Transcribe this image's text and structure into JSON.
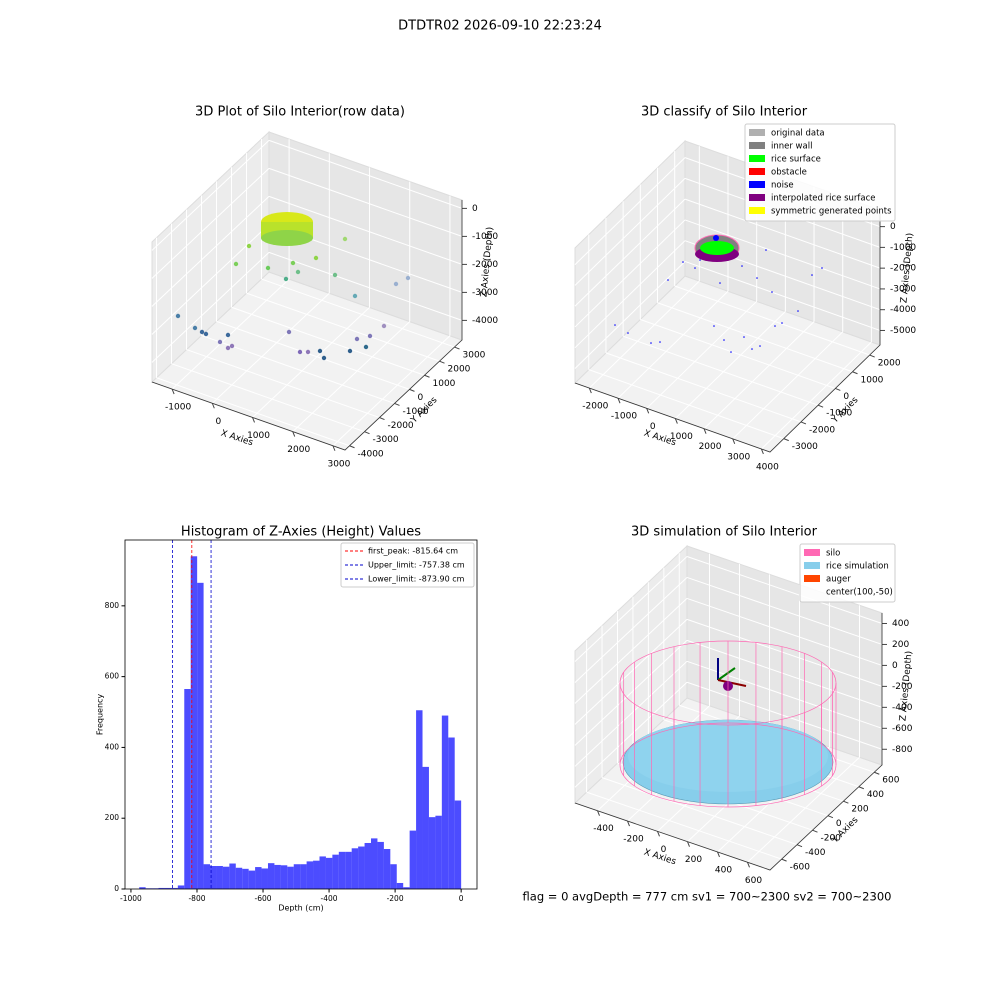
{
  "title": "DTDTR02 2026-09-10 22:23:24",
  "footer": "flag = 0     avgDepth = 777 cm  sv1 = 700~2300  sv2 = 700~2300",
  "chart_data": [
    {
      "type": "scatter3d",
      "title": "3D Plot of Silo Interior(row data)",
      "xlabel": "X Axies",
      "ylabel": "Y Axies",
      "zlabel": "Z Axies (Depth)",
      "xlim": [
        -1500,
        3300
      ],
      "ylim": [
        -4300,
        3500
      ],
      "zlim": [
        -4700,
        300
      ],
      "xticks": [
        -1000,
        0,
        1000,
        2000,
        3000
      ],
      "yticks": [
        -4000,
        -3000,
        -2000,
        -1000,
        0,
        1000,
        2000,
        3000
      ],
      "zticks": [
        -4000,
        -3000,
        -2000,
        -1000,
        0
      ],
      "grid": true
    },
    {
      "type": "scatter3d",
      "title": "3D classify of Silo Interior",
      "xlabel": "X Axies",
      "ylabel": "Y Axies",
      "zlabel": "Z Axies (Depth)",
      "xlim": [
        -2500,
        4300
      ],
      "ylim": [
        -3800,
        2600
      ],
      "zlim": [
        -5700,
        800
      ],
      "xticks": [
        -2000,
        -1000,
        0,
        1000,
        2000,
        3000,
        4000
      ],
      "yticks": [
        -3000,
        -2000,
        -1000,
        0,
        1000,
        2000
      ],
      "zticks": [
        -5000,
        -4000,
        -3000,
        -2000,
        -1000,
        0
      ],
      "grid": true,
      "legend_position": "upper right",
      "legend": [
        {
          "name": "original data",
          "color": "#b0b0b0"
        },
        {
          "name": "inner wall",
          "color": "#808080"
        },
        {
          "name": "rice surface",
          "color": "#00ff00"
        },
        {
          "name": "obstacle",
          "color": "#ff0000"
        },
        {
          "name": "noise",
          "color": "#0000ff"
        },
        {
          "name": "interpolated rice surface",
          "color": "#800080"
        },
        {
          "name": "symmetric generated points",
          "color": "#ffff00"
        }
      ]
    },
    {
      "type": "histogram",
      "title": "Histogram of Z-Axies (Height) Values",
      "xlabel": "Depth (cm)",
      "ylabel": "Frequency",
      "color": "#0000ff",
      "bins": [
        -975,
        -955.5,
        -936,
        -916.5,
        -897,
        -877.5,
        -858,
        -838.5,
        -819,
        -799.5,
        -780,
        -760.5,
        -741,
        -721.5,
        -702,
        -682.5,
        -663,
        -643.5,
        -624,
        -604.5,
        -585,
        -565.5,
        -546,
        -526.5,
        -507,
        -487.5,
        -468,
        -448.5,
        -429,
        -409.5,
        -390,
        -370.5,
        -351,
        -331.5,
        -312,
        -292.5,
        -273,
        -253.5,
        -234,
        -214.5,
        -195,
        -175.5,
        -156,
        -136.5,
        -117,
        -97.5,
        -78,
        -58.5,
        -39,
        -19.5,
        0
      ],
      "values": [
        5,
        2,
        2,
        3,
        3,
        3,
        10,
        565,
        940,
        865,
        70,
        65,
        65,
        63,
        72,
        60,
        57,
        52,
        62,
        58,
        73,
        68,
        67,
        63,
        70,
        70,
        78,
        80,
        92,
        88,
        97,
        105,
        105,
        115,
        120,
        130,
        143,
        133,
        113,
        70,
        17,
        5,
        165,
        505,
        345,
        203,
        207,
        490,
        428,
        250
      ],
      "xlim": [
        -1018,
        48
      ],
      "ylim": [
        0,
        986
      ],
      "xticks": [
        -1000,
        -800,
        -600,
        -400,
        -200,
        0
      ],
      "yticks": [
        0,
        200,
        400,
        600,
        800
      ],
      "legend_position": "upper right",
      "vlines": [
        {
          "label": "first_peak: -815.64 cm",
          "value": -815.64,
          "color": "#ff0000"
        },
        {
          "label": "Upper_limit: -757.38 cm",
          "value": -757.38,
          "color": "#0000cc"
        },
        {
          "label": "Lower_limit: -873.90 cm",
          "value": -873.9,
          "color": "#0000cc"
        }
      ]
    },
    {
      "type": "scatter3d",
      "title": "3D simulation of Silo Interior",
      "xlabel": "X Axies",
      "ylabel": "Y Axies",
      "zlabel": "Z Axies (Depth)",
      "xlim": [
        -550,
        750
      ],
      "ylim": [
        -750,
        700
      ],
      "zlim": [
        -950,
        500
      ],
      "xticks": [
        -400,
        -200,
        0,
        200,
        400,
        600
      ],
      "yticks": [
        -600,
        -400,
        -200,
        0,
        200,
        400,
        600
      ],
      "zticks": [
        -800,
        -600,
        -400,
        -200,
        0,
        200,
        400
      ],
      "grid": true,
      "legend_position": "upper right",
      "legend": [
        {
          "name": "silo",
          "color": "#ff69b4"
        },
        {
          "name": "rice simulation",
          "color": "#87ceeb"
        },
        {
          "name": "auger",
          "color": "#ff4500"
        },
        {
          "name": "center(100,-50)",
          "color": null
        }
      ]
    }
  ]
}
